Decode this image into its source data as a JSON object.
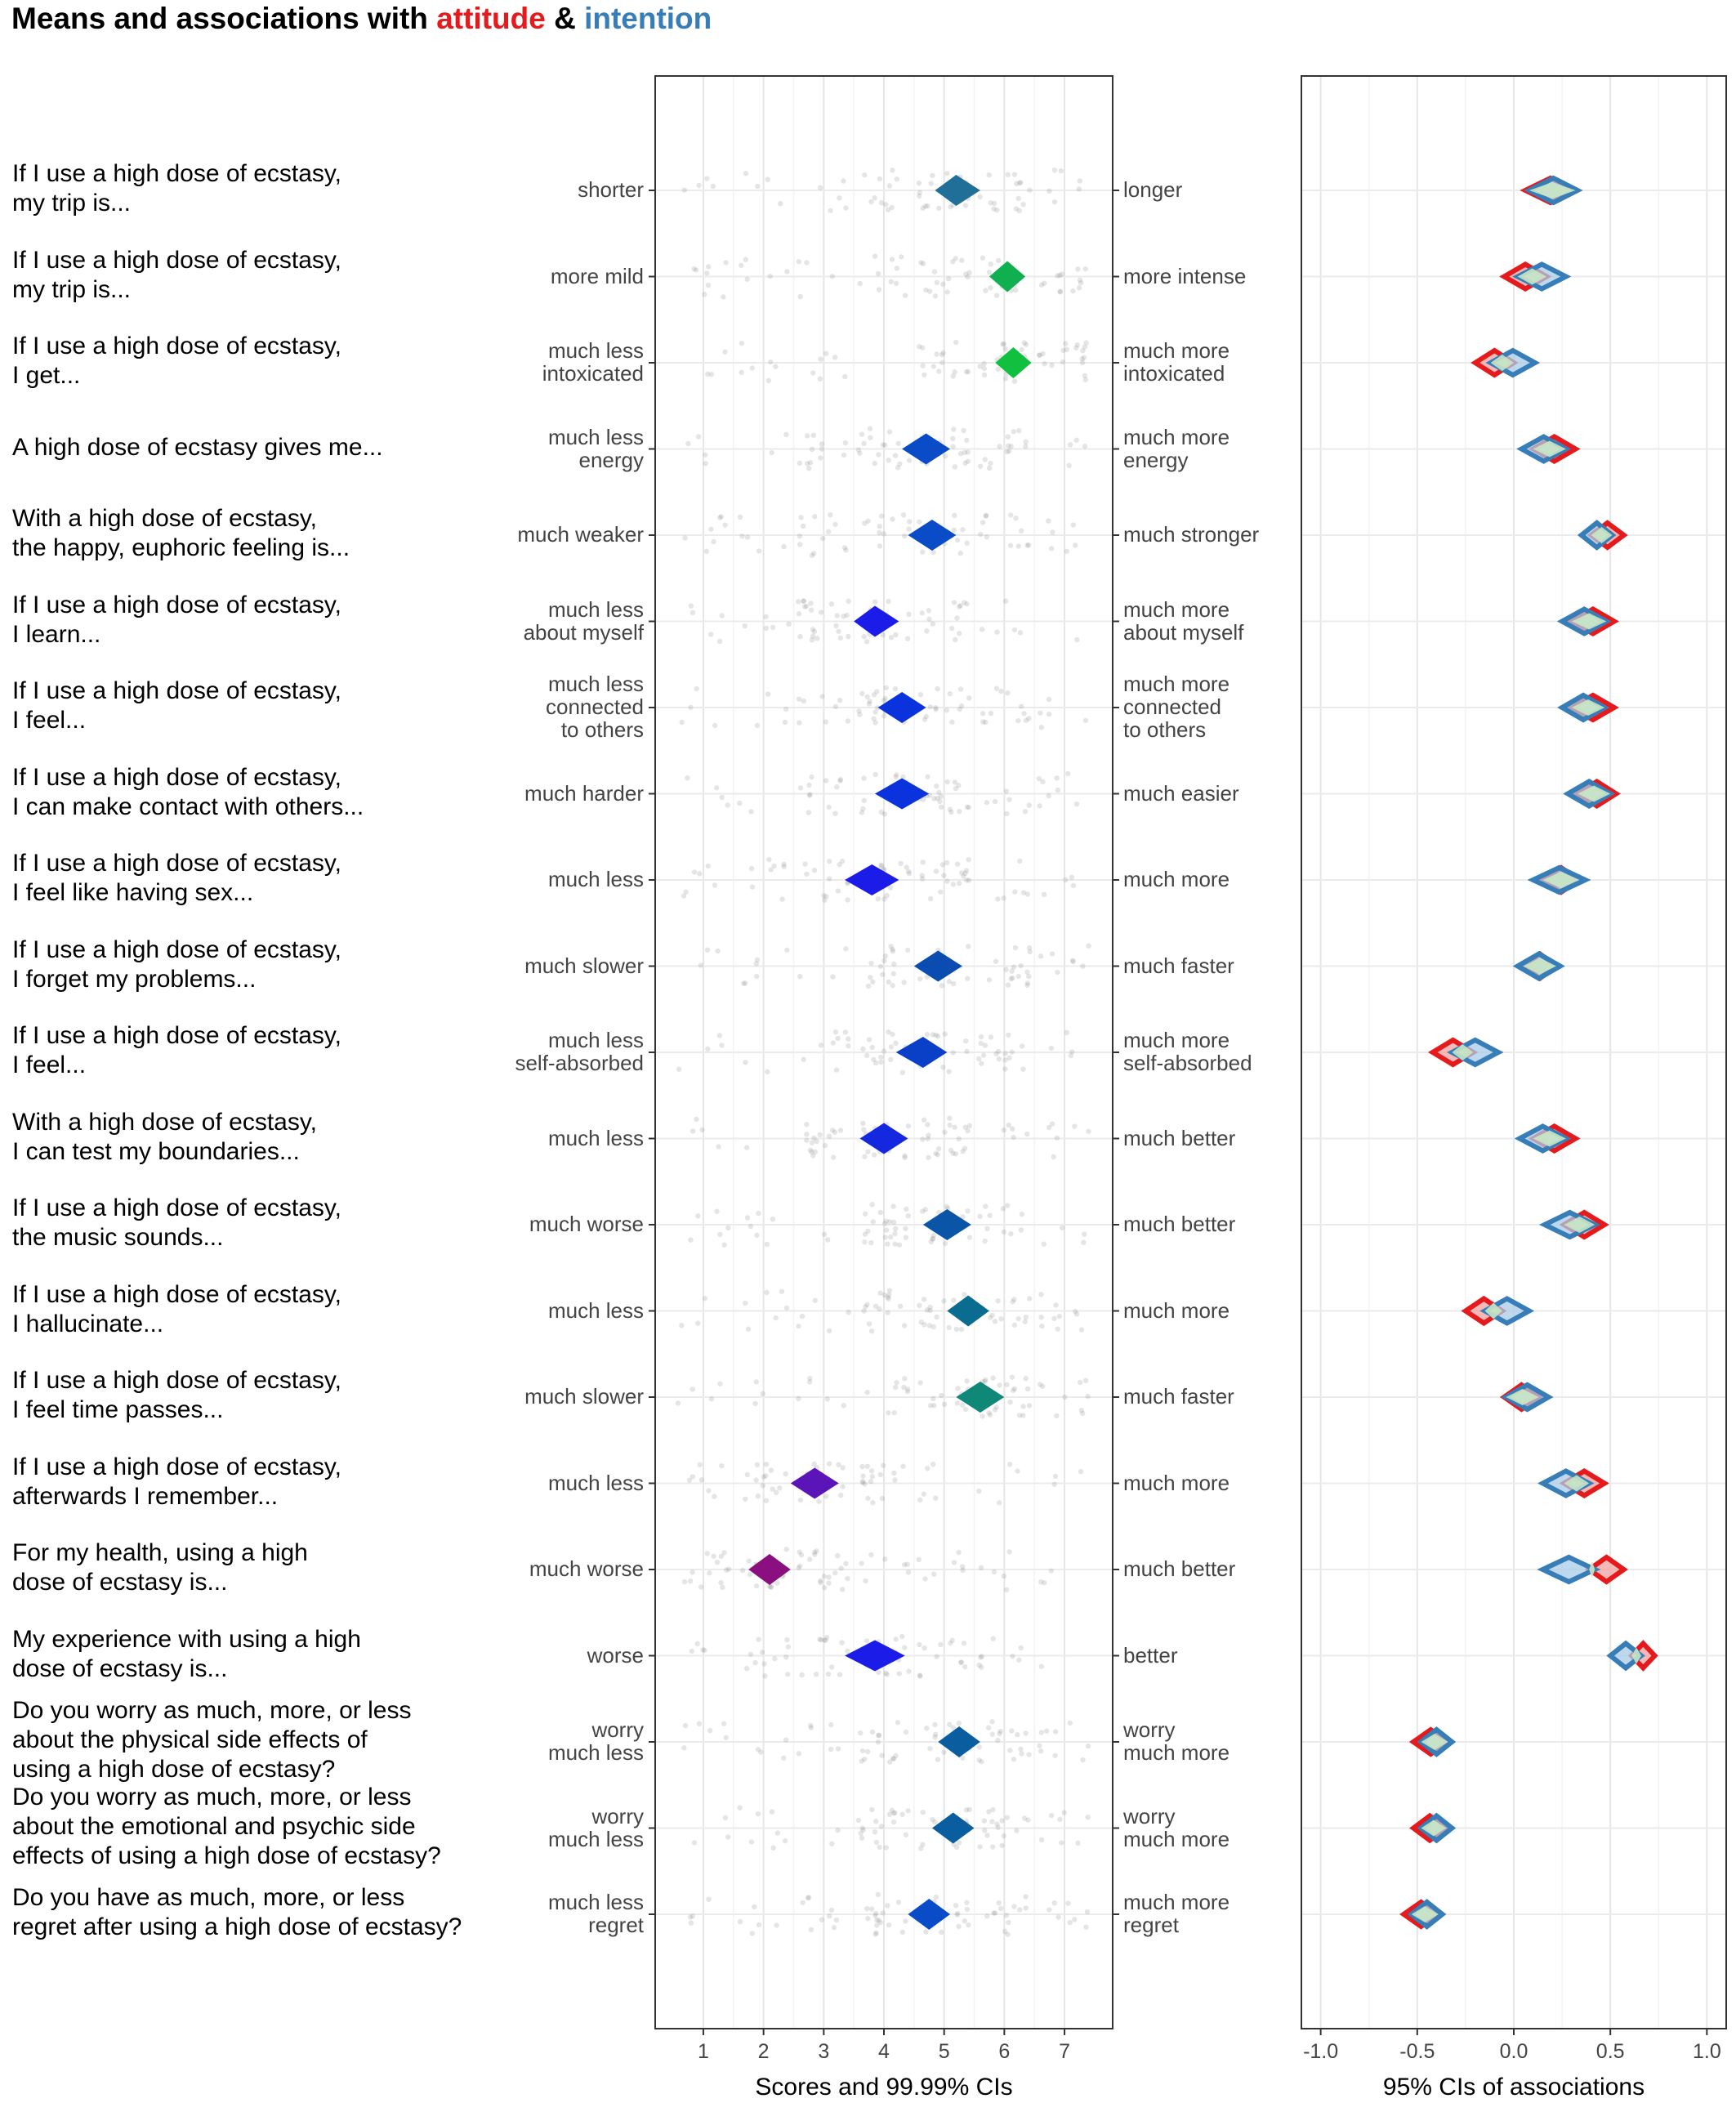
{
  "title": {
    "prefix": "Means and associations with ",
    "attitude_word": "attitude",
    "amp": " & ",
    "intention_word": "intention"
  },
  "colors": {
    "attitude": "#e41a1c",
    "intention": "#377eb8"
  },
  "chart_data": [
    {
      "type": "scatter",
      "title": "",
      "xlabel": "Scores and 99.99% CIs",
      "xlim": [
        0.2,
        7.8
      ],
      "xticks": [
        "1",
        "2",
        "3",
        "4",
        "5",
        "6",
        "7"
      ],
      "grid": true,
      "jitter_points": "grey semi-transparent individual scores",
      "items": [
        {
          "question": "If I use a high dose of ecstasy,\nmy trip is...",
          "left_anchor": "shorter",
          "right_anchor": "longer",
          "mean": 5.2,
          "ci_low": 4.85,
          "ci_high": 5.6,
          "color": "#1f6f99"
        },
        {
          "question": "If I use a high dose of ecstasy,\nmy trip is...",
          "left_anchor": "more mild",
          "right_anchor": "more intense",
          "mean": 6.05,
          "ci_low": 5.75,
          "ci_high": 6.35,
          "color": "#10b050"
        },
        {
          "question": "If I use a high dose of ecstasy,\nI get...",
          "left_anchor": "much less\nintoxicated",
          "right_anchor": "much more\nintoxicated",
          "mean": 6.15,
          "ci_low": 5.85,
          "ci_high": 6.45,
          "color": "#12c040"
        },
        {
          "question": "A high dose of ecstasy gives me...",
          "left_anchor": "much less\nenergy",
          "right_anchor": "much more\nenergy",
          "mean": 4.7,
          "ci_low": 4.3,
          "ci_high": 5.1,
          "color": "#0a4cc8"
        },
        {
          "question": "With a high dose of ecstasy,\nthe happy, euphoric feeling is...",
          "left_anchor": "much weaker",
          "right_anchor": "much stronger",
          "mean": 4.8,
          "ci_low": 4.4,
          "ci_high": 5.2,
          "color": "#0a4cc8"
        },
        {
          "question": "If I use a high dose of ecstasy,\nI learn...",
          "left_anchor": "much less\nabout myself",
          "right_anchor": "much more\nabout myself",
          "mean": 3.85,
          "ci_low": 3.5,
          "ci_high": 4.25,
          "color": "#1c1ce8"
        },
        {
          "question": "If I use a high dose of ecstasy,\nI feel...",
          "left_anchor": "much less\nconnected\nto others",
          "right_anchor": "much more\nconnected\nto others",
          "mean": 4.3,
          "ci_low": 3.9,
          "ci_high": 4.7,
          "color": "#0a32dd"
        },
        {
          "question": "If I use a high dose of ecstasy,\nI can make contact with others...",
          "left_anchor": "much harder",
          "right_anchor": "much easier",
          "mean": 4.3,
          "ci_low": 3.85,
          "ci_high": 4.75,
          "color": "#0a32dd"
        },
        {
          "question": "If I use a high dose of ecstasy,\nI feel like having sex...",
          "left_anchor": "much less",
          "right_anchor": "much more",
          "mean": 3.8,
          "ci_low": 3.35,
          "ci_high": 4.25,
          "color": "#1c1ce8"
        },
        {
          "question": "If I use a high dose of ecstasy,\nI forget my problems...",
          "left_anchor": "much slower",
          "right_anchor": "much faster",
          "mean": 4.9,
          "ci_low": 4.5,
          "ci_high": 5.3,
          "color": "#0a4cb0"
        },
        {
          "question": "If I use a high dose of ecstasy,\nI feel...",
          "left_anchor": "much less\nself-absorbed",
          "right_anchor": "much more\nself-absorbed",
          "mean": 4.65,
          "ci_low": 4.2,
          "ci_high": 5.05,
          "color": "#0a40c8"
        },
        {
          "question": "With a high dose of ecstasy,\nI can test my boundaries...",
          "left_anchor": "much less",
          "right_anchor": "much better",
          "mean": 4.0,
          "ci_low": 3.6,
          "ci_high": 4.4,
          "color": "#1428e0"
        },
        {
          "question": "If I use a high dose of ecstasy,\nthe music sounds...",
          "left_anchor": "much worse",
          "right_anchor": "much better",
          "mean": 5.05,
          "ci_low": 4.65,
          "ci_high": 5.45,
          "color": "#0a55a8"
        },
        {
          "question": "If I use a high dose of ecstasy,\nI hallucinate...",
          "left_anchor": "much less",
          "right_anchor": "much more",
          "mean": 5.4,
          "ci_low": 5.05,
          "ci_high": 5.75,
          "color": "#0a6c90"
        },
        {
          "question": "If I use a high dose of ecstasy,\nI feel time passes...",
          "left_anchor": "much slower",
          "right_anchor": "much faster",
          "mean": 5.6,
          "ci_low": 5.2,
          "ci_high": 6.0,
          "color": "#108878"
        },
        {
          "question": "If I use a high dose of ecstasy,\nafterwards I remember...",
          "left_anchor": "much less",
          "right_anchor": "much more",
          "mean": 2.85,
          "ci_low": 2.45,
          "ci_high": 3.25,
          "color": "#5a14b8"
        },
        {
          "question": "For my health, using a high\ndose of ecstasy is...",
          "left_anchor": "much worse",
          "right_anchor": "much better",
          "mean": 2.1,
          "ci_low": 1.75,
          "ci_high": 2.45,
          "color": "#8a1080"
        },
        {
          "question": "My experience with using a high\ndose of ecstasy is...",
          "left_anchor": "worse",
          "right_anchor": "better",
          "mean": 3.85,
          "ci_low": 3.35,
          "ci_high": 4.35,
          "color": "#1c1ce8"
        },
        {
          "question": "Do you worry as much, more, or less\nabout the physical side effects of\nusing a high dose of ecstasy?",
          "left_anchor": "worry\nmuch less",
          "right_anchor": "worry\nmuch more",
          "mean": 5.25,
          "ci_low": 4.9,
          "ci_high": 5.6,
          "color": "#0a5ea0"
        },
        {
          "question": "Do you worry as much, more, or less\nabout the emotional and psychic side\neffects of using a high dose of ecstasy?",
          "left_anchor": "worry\nmuch less",
          "right_anchor": "worry\nmuch more",
          "mean": 5.15,
          "ci_low": 4.8,
          "ci_high": 5.5,
          "color": "#0a5ea0"
        },
        {
          "question": "Do you have as much, more, or less\nregret after using a high dose of ecstasy?",
          "left_anchor": "much less\nregret",
          "right_anchor": "much more\nregret",
          "mean": 4.75,
          "ci_low": 4.4,
          "ci_high": 5.1,
          "color": "#0a4cc8"
        }
      ]
    },
    {
      "type": "scatter",
      "title": "",
      "xlabel": "95% CIs of associations",
      "xlim": [
        -1.1,
        1.1
      ],
      "xticks": [
        "-1.0",
        "-0.5",
        "0.0",
        "0.5",
        "1.0"
      ],
      "grid": true,
      "series": [
        {
          "name": "attitude",
          "color": "#e41a1c",
          "low": [
            0.06,
            -0.05,
            -0.2,
            0.1,
            0.4,
            0.3,
            0.3,
            0.33,
            0.15,
            0.05,
            -0.42,
            0.1,
            0.26,
            -0.25,
            -0.05,
            0.26,
            0.39,
            0.61,
            -0.52,
            -0.52,
            -0.57
          ],
          "high": [
            0.32,
            0.17,
            0.0,
            0.32,
            0.57,
            0.52,
            0.52,
            0.53,
            0.34,
            0.22,
            -0.21,
            0.32,
            0.47,
            -0.06,
            0.13,
            0.47,
            0.57,
            0.73,
            -0.34,
            -0.35,
            -0.39
          ]
        },
        {
          "name": "intention",
          "color": "#377eb8",
          "low": [
            0.08,
            0.02,
            -0.12,
            0.04,
            0.35,
            0.25,
            0.25,
            0.28,
            0.1,
            0.02,
            -0.32,
            0.03,
            0.16,
            -0.15,
            -0.04,
            0.15,
            0.15,
            0.5,
            -0.48,
            -0.48,
            -0.53
          ],
          "high": [
            0.33,
            0.27,
            0.11,
            0.27,
            0.51,
            0.48,
            0.47,
            0.5,
            0.37,
            0.24,
            -0.08,
            0.27,
            0.42,
            0.08,
            0.18,
            0.39,
            0.42,
            0.66,
            -0.32,
            -0.32,
            -0.37
          ]
        }
      ]
    }
  ]
}
